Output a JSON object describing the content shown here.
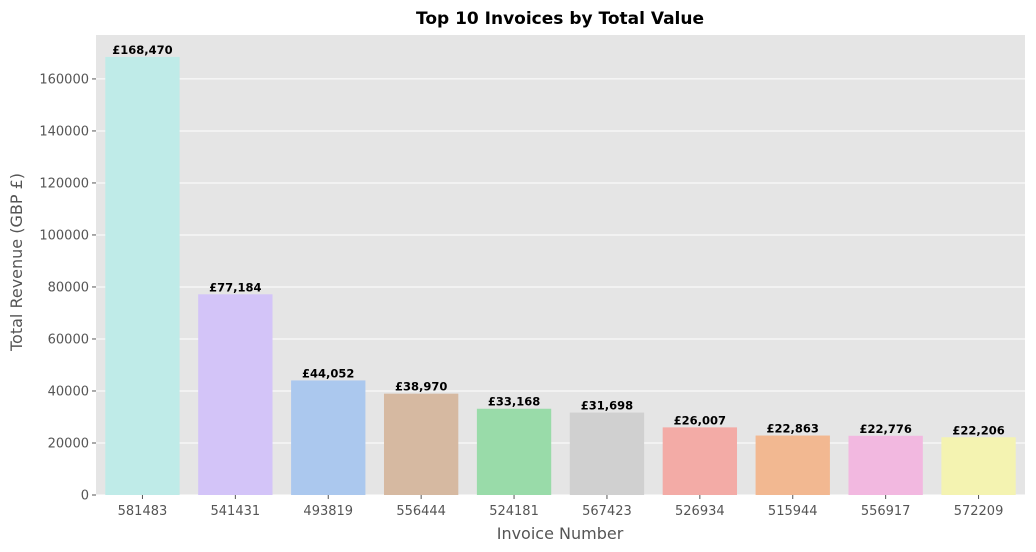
{
  "chart_data": {
    "type": "bar",
    "title": "Top 10 Invoices by Total Value",
    "xlabel": "Invoice Number",
    "ylabel": "Total Revenue (GBP £)",
    "categories": [
      "581483",
      "541431",
      "493819",
      "556444",
      "524181",
      "567423",
      "526934",
      "515944",
      "556917",
      "572209"
    ],
    "values": [
      168470,
      77184,
      44052,
      38970,
      33168,
      31698,
      26007,
      22863,
      22776,
      22206
    ],
    "data_labels": [
      "£168,470",
      "£77,184",
      "£44,052",
      "£38,970",
      "£33,168",
      "£31,698",
      "£26,007",
      "£22,863",
      "£22,776",
      "£22,206"
    ],
    "y_ticks": [
      "0",
      "20000",
      "40000",
      "60000",
      "80000",
      "100000",
      "120000",
      "140000",
      "160000"
    ],
    "ylim": [
      0,
      176894
    ],
    "grid": true,
    "colors": [
      "#bfebe8",
      "#d3c4f8",
      "#abc8ee",
      "#d6b9a1",
      "#99dba9",
      "#d0d0d0",
      "#f3aba6",
      "#f2b891",
      "#f2b8e0",
      "#f4f3b1"
    ],
    "plot_background": "#e5e5e5",
    "grid_color": "#ffffff"
  }
}
